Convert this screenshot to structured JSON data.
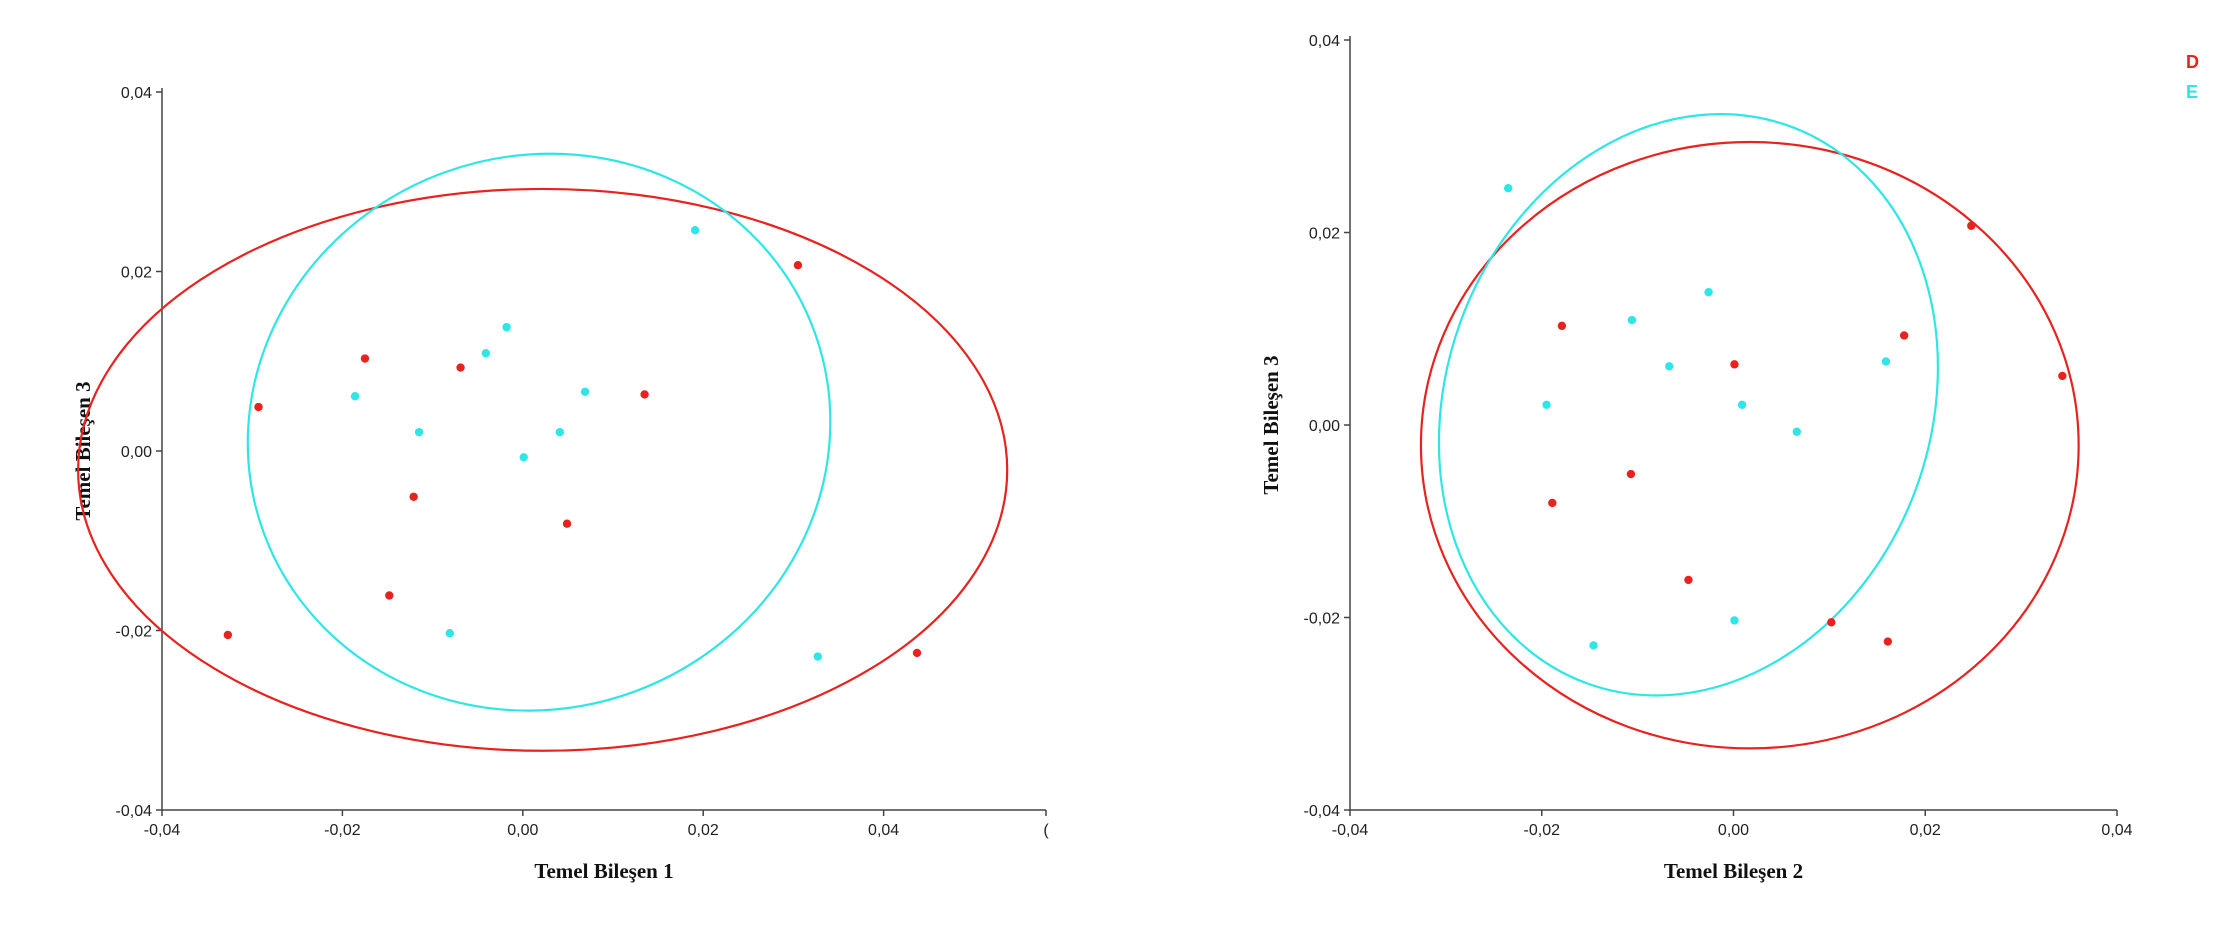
{
  "legend": {
    "items": [
      {
        "label": "D",
        "color": "#e8231f"
      },
      {
        "label": "E",
        "color": "#2ee6e6"
      }
    ]
  },
  "chart_data": [
    {
      "type": "scatter",
      "title": "",
      "xlabel": "Temel Bileşen 1",
      "ylabel": "Temel Bileşen 3",
      "xlim": [
        -0.04,
        0.058
      ],
      "ylim": [
        -0.04,
        0.04
      ],
      "xticks": [
        {
          "value": -0.04,
          "label": "-0,04"
        },
        {
          "value": -0.02,
          "label": "-0,02"
        },
        {
          "value": 0.0,
          "label": "0,00"
        },
        {
          "value": 0.02,
          "label": "0,02"
        },
        {
          "value": 0.04,
          "label": "0,04"
        },
        {
          "value": 0.058,
          "label": "("
        }
      ],
      "yticks": [
        {
          "value": -0.04,
          "label": "-0,04"
        },
        {
          "value": -0.02,
          "label": "-0,02"
        },
        {
          "value": 0.0,
          "label": "0,00"
        },
        {
          "value": 0.02,
          "label": "0,02"
        },
        {
          "value": 0.04,
          "label": "0,04"
        }
      ],
      "grid": false,
      "series": [
        {
          "name": "D",
          "color": "#e8231f",
          "points": [
            [
              -0.0327,
              -0.0205
            ],
            [
              -0.0293,
              0.0049
            ],
            [
              -0.0175,
              0.0103
            ],
            [
              -0.0148,
              -0.0161
            ],
            [
              -0.0121,
              -0.0051
            ],
            [
              -0.0069,
              0.0093
            ],
            [
              0.0049,
              -0.0081
            ],
            [
              0.0135,
              0.0063
            ],
            [
              0.0305,
              0.0207
            ],
            [
              0.0437,
              -0.0225
            ]
          ],
          "ellipse": {
            "center": [
              0.0022,
              -0.0021
            ],
            "semi_axis_x": 0.0515,
            "semi_axis_y": 0.0313,
            "rotation_deg": 0
          }
        },
        {
          "name": "E",
          "color": "#2ee6e6",
          "points": [
            [
              -0.0186,
              0.0061
            ],
            [
              -0.0115,
              0.0021
            ],
            [
              -0.0081,
              -0.0203
            ],
            [
              -0.0041,
              0.0109
            ],
            [
              -0.0018,
              0.0138
            ],
            [
              0.0001,
              -0.0007
            ],
            [
              0.0041,
              0.0021
            ],
            [
              0.0069,
              0.0066
            ],
            [
              0.0191,
              0.0246
            ],
            [
              0.0327,
              -0.0229
            ]
          ],
          "ellipse": {
            "center": [
              0.0018,
              0.0021
            ],
            "semi_axis_x": 0.0325,
            "semi_axis_y": 0.0308,
            "rotation_deg": -20
          }
        }
      ]
    },
    {
      "type": "scatter",
      "title": "",
      "xlabel": "Temel Bileşen 2",
      "ylabel": "Temel Bileşen 3",
      "xlim": [
        -0.04,
        0.04
      ],
      "ylim": [
        -0.04,
        0.04
      ],
      "xticks": [
        {
          "value": -0.04,
          "label": "-0,04"
        },
        {
          "value": -0.02,
          "label": "-0,02"
        },
        {
          "value": 0.0,
          "label": "0,00"
        },
        {
          "value": 0.02,
          "label": "0,02"
        },
        {
          "value": 0.04,
          "label": "0,04"
        }
      ],
      "yticks": [
        {
          "value": -0.04,
          "label": "-0,04"
        },
        {
          "value": -0.02,
          "label": "-0,02"
        },
        {
          "value": 0.0,
          "label": "0,00"
        },
        {
          "value": 0.02,
          "label": "0,02"
        },
        {
          "value": 0.04,
          "label": "0,04"
        }
      ],
      "grid": false,
      "series": [
        {
          "name": "D",
          "color": "#e8231f",
          "points": [
            [
              -0.0179,
              0.0103
            ],
            [
              -0.0189,
              -0.0081
            ],
            [
              -0.0107,
              -0.0051
            ],
            [
              -0.0047,
              -0.0161
            ],
            [
              0.0001,
              0.0063
            ],
            [
              0.0102,
              -0.0205
            ],
            [
              0.0161,
              -0.0225
            ],
            [
              0.0178,
              0.0093
            ],
            [
              0.0248,
              0.0207
            ],
            [
              0.0343,
              0.0051
            ]
          ],
          "ellipse": {
            "center": [
              0.0017,
              -0.0021
            ],
            "semi_axis_x": 0.0343,
            "semi_axis_y": 0.0315,
            "rotation_deg": 0
          }
        },
        {
          "name": "E",
          "color": "#2ee6e6",
          "points": [
            [
              -0.0235,
              0.0246
            ],
            [
              -0.0195,
              0.0021
            ],
            [
              -0.0146,
              -0.0229
            ],
            [
              -0.0106,
              0.0109
            ],
            [
              -0.0067,
              0.0061
            ],
            [
              -0.0026,
              0.0138
            ],
            [
              0.0001,
              -0.0203
            ],
            [
              0.0009,
              0.0021
            ],
            [
              0.0066,
              -0.0007
            ],
            [
              0.0159,
              0.0066
            ]
          ],
          "ellipse": {
            "center": [
              -0.0047,
              0.0021
            ],
            "semi_axis_x": 0.0253,
            "semi_axis_y": 0.0308,
            "rotation_deg": 20
          }
        }
      ]
    }
  ]
}
